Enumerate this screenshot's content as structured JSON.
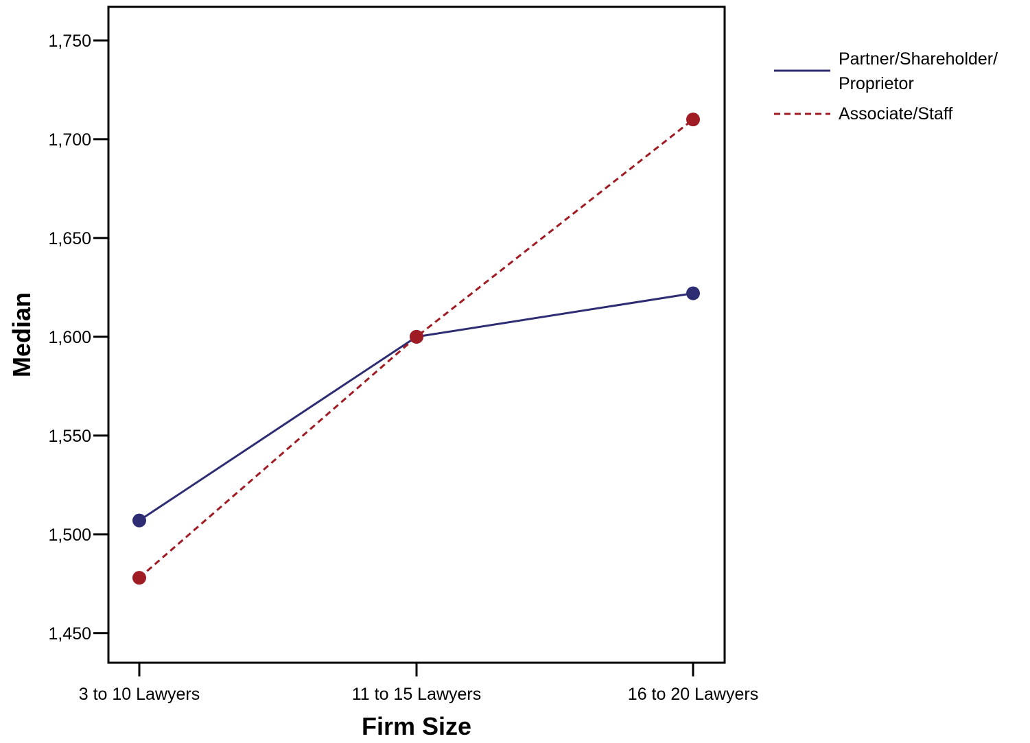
{
  "chart_data": {
    "type": "line",
    "title": "",
    "xlabel": "Firm Size",
    "ylabel": "Median",
    "categories": [
      "3 to 10 Lawyers",
      "11 to 15 Lawyers",
      "16 to 20 Lawyers"
    ],
    "ylim": [
      1435,
      1767
    ],
    "yticks": [
      1450,
      1500,
      1550,
      1600,
      1650,
      1700,
      1750
    ],
    "ytick_labels": [
      "1,450",
      "1,500",
      "1,550",
      "1,600",
      "1,650",
      "1,700",
      "1,750"
    ],
    "grid": false,
    "legend_position": "right",
    "series": [
      {
        "name_lines": [
          "Partner/Shareholder/",
          "Proprietor"
        ],
        "values": [
          1507,
          1600,
          1622
        ],
        "color": "#2e2d73",
        "line_style": "solid"
      },
      {
        "name_lines": [
          "Associate/Staff"
        ],
        "values": [
          1478,
          1600,
          1710
        ],
        "color": "#a01c24",
        "line_style": "dashed"
      }
    ]
  }
}
